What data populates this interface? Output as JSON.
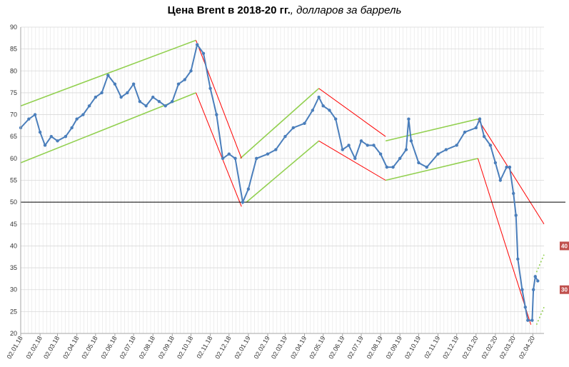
{
  "chart_data": {
    "type": "line",
    "title_bold": "Цена Brent в 2018-20 гг.",
    "title_rest": ", долларов за баррель",
    "ylim": [
      20,
      90
    ],
    "y_ticks": [
      "20",
      "25",
      "30",
      "35",
      "40",
      "45",
      "50",
      "55",
      "60",
      "65",
      "70",
      "75",
      "80",
      "85",
      "90"
    ],
    "x_tick_labels": [
      "02.01.18",
      "02.02.18",
      "02.03.18",
      "02.04.18",
      "02.05.18",
      "02.06.18",
      "02.07.18",
      "02.08.18",
      "02.09.18",
      "02.10.18",
      "02.11.18",
      "02.12.18",
      "02.01.19",
      "02.02.19",
      "02.03.19",
      "02.04.19",
      "02.05.19",
      "02.06.19",
      "02.07.19",
      "02.08.19",
      "02.09.19",
      "02.10.19",
      "02.11.19",
      "02.12.19",
      "02.01.20",
      "02.02.20",
      "02.03.20",
      "02.04.20"
    ],
    "grid": true,
    "reference_line_y": 50,
    "series": [
      {
        "color": "#4a7ebb",
        "x": [
          "02.01.18",
          "15.01.18",
          "25.01.18",
          "02.02.18",
          "10.02.18",
          "20.02.18",
          "02.03.18",
          "15.03.18",
          "25.03.18",
          "02.04.18",
          "12.04.18",
          "22.04.18",
          "02.05.18",
          "12.05.18",
          "22.05.18",
          "02.06.18",
          "12.06.18",
          "22.06.18",
          "02.07.18",
          "12.07.18",
          "22.07.18",
          "02.08.18",
          "12.08.18",
          "22.08.18",
          "02.09.18",
          "12.09.18",
          "22.09.18",
          "02.10.18",
          "12.10.18",
          "22.10.18",
          "02.11.18",
          "12.11.18",
          "22.11.18",
          "02.12.18",
          "12.12.18",
          "24.12.18",
          "02.01.19",
          "15.01.19",
          "02.02.19",
          "15.02.19",
          "02.03.19",
          "15.03.19",
          "02.04.19",
          "15.04.19",
          "25.04.19",
          "02.05.19",
          "12.05.19",
          "22.05.19",
          "02.06.19",
          "12.06.19",
          "22.06.19",
          "02.07.19",
          "12.07.19",
          "22.07.19",
          "02.08.19",
          "12.08.19",
          "22.08.19",
          "02.09.19",
          "12.09.19",
          "16.09.19",
          "20.09.19",
          "02.10.19",
          "15.10.19",
          "02.11.19",
          "15.11.19",
          "02.12.19",
          "15.12.19",
          "02.01.20",
          "08.01.20",
          "15.01.20",
          "25.01.20",
          "02.02.20",
          "10.02.20",
          "20.02.20",
          "25.02.20",
          "02.03.20",
          "06.03.20",
          "09.03.20",
          "16.03.20",
          "21.03.20",
          "25.03.20",
          "01.04.20",
          "03.04.20",
          "06.04.20",
          "10.04.20"
        ],
        "y": [
          67,
          69,
          70,
          66,
          63,
          65,
          64,
          65,
          67,
          69,
          70,
          72,
          74,
          75,
          79,
          77,
          74,
          75,
          77,
          73,
          72,
          74,
          73,
          72,
          73,
          77,
          78,
          80,
          86,
          84,
          76,
          70,
          60,
          61,
          60,
          50,
          53,
          60,
          61,
          62,
          65,
          67,
          68,
          71,
          74,
          72,
          71,
          69,
          62,
          63,
          60,
          64,
          63,
          63,
          61,
          58,
          58,
          60,
          62,
          69,
          64,
          59,
          58,
          61,
          62,
          63,
          66,
          67,
          69,
          65,
          63,
          59,
          55,
          58,
          58,
          52,
          47,
          37,
          30,
          26,
          23,
          23,
          30,
          33,
          32
        ]
      }
    ],
    "trend_lines": {
      "green": [
        {
          "x": [
            "02.01.18",
            "10.10.18"
          ],
          "y": [
            72,
            87
          ]
        },
        {
          "x": [
            "02.01.18",
            "10.10.18"
          ],
          "y": [
            59,
            75
          ]
        },
        {
          "x": [
            "20.12.18",
            "25.04.19"
          ],
          "y": [
            60,
            76
          ]
        },
        {
          "x": [
            "30.12.18",
            "25.04.19"
          ],
          "y": [
            50,
            64
          ]
        },
        {
          "x": [
            "10.08.19",
            "05.01.20"
          ],
          "y": [
            64,
            69
          ]
        },
        {
          "x": [
            "10.08.19",
            "05.01.20"
          ],
          "y": [
            55,
            60
          ]
        }
      ],
      "red": [
        {
          "x": [
            "10.10.18",
            "22.12.18"
          ],
          "y": [
            87,
            60
          ]
        },
        {
          "x": [
            "10.10.18",
            "22.12.18"
          ],
          "y": [
            75,
            49
          ]
        },
        {
          "x": [
            "25.04.19",
            "10.08.19"
          ],
          "y": [
            76,
            65
          ]
        },
        {
          "x": [
            "25.04.19",
            "10.08.19"
          ],
          "y": [
            64,
            55
          ]
        },
        {
          "x": [
            "05.01.20",
            "20.04.20"
          ],
          "y": [
            69,
            45
          ]
        },
        {
          "x": [
            "05.01.20",
            "30.03.20"
          ],
          "y": [
            60,
            22
          ]
        }
      ],
      "green_dotted": [
        {
          "x": [
            "08.04.20",
            "20.04.20"
          ],
          "y": [
            34,
            38
          ]
        },
        {
          "x": [
            "08.04.20",
            "20.04.20"
          ],
          "y": [
            22,
            26
          ]
        }
      ]
    },
    "annotations": [
      {
        "text": "40",
        "y": 40,
        "color": "#c0504d"
      },
      {
        "text": "30",
        "y": 30,
        "color": "#c0504d"
      }
    ]
  }
}
